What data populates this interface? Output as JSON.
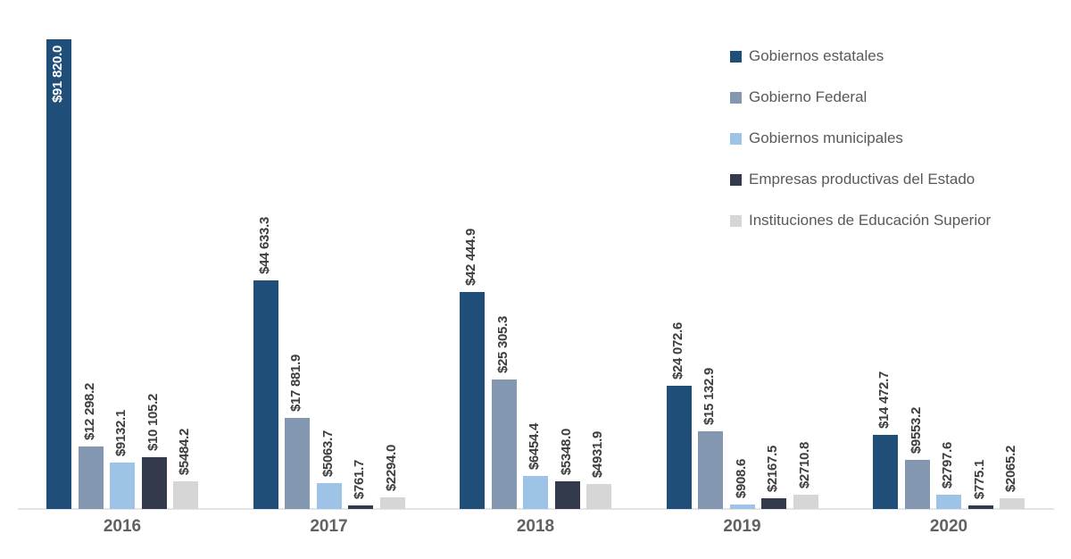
{
  "chart_data": {
    "type": "bar",
    "title": "",
    "xlabel": "",
    "ylabel": "",
    "categories": [
      "2016",
      "2017",
      "2018",
      "2019",
      "2020"
    ],
    "series": [
      {
        "name": "Gobiernos estatales",
        "color": "#1F4E79",
        "values": [
          91820.0,
          44633.3,
          42444.9,
          24072.6,
          14472.7
        ],
        "labels": [
          "$91 820.0",
          "$44 633.3",
          "$42 444.9",
          "$24 072.6",
          "$14 472.7"
        ]
      },
      {
        "name": "Gobierno Federal",
        "color": "#8497B0",
        "values": [
          12298.2,
          17881.9,
          25305.3,
          15132.9,
          9553.2
        ],
        "labels": [
          "$12 298.2",
          "$17 881.9",
          "$25 305.3",
          "$15 132.9",
          "$9553.2"
        ]
      },
      {
        "name": "Gobiernos municipales",
        "color": "#9DC3E6",
        "values": [
          9132.1,
          5063.7,
          6454.4,
          908.6,
          2797.6
        ],
        "labels": [
          "$9132.1",
          "$5063.7",
          "$6454.4",
          "$908.6",
          "$2797.6"
        ]
      },
      {
        "name": "Empresas productivas del Estado",
        "color": "#323A4B",
        "values": [
          10105.2,
          761.7,
          5348.0,
          2167.5,
          775.1
        ],
        "labels": [
          "$10 105.2",
          "$761.7",
          "$5348.0",
          "$2167.5",
          "$775.1"
        ]
      },
      {
        "name": "Instituciones de Educación Superior",
        "color": "#D6D6D6",
        "values": [
          5484.2,
          2294.0,
          4931.9,
          2710.8,
          2065.2
        ],
        "labels": [
          "$5484.2",
          "$2294.0",
          "$4931.9",
          "$2710.8",
          "$2065.2"
        ]
      }
    ],
    "ylim": [
      0,
      91820
    ],
    "grid": false,
    "legend_position": "top-right",
    "value_labels": "rotated-90-above-bars, largest bar label inside in white",
    "axis_line_color": "#E4E4E4",
    "label_text_color": "#3D3D3D",
    "tick_label_color": "#616161"
  }
}
